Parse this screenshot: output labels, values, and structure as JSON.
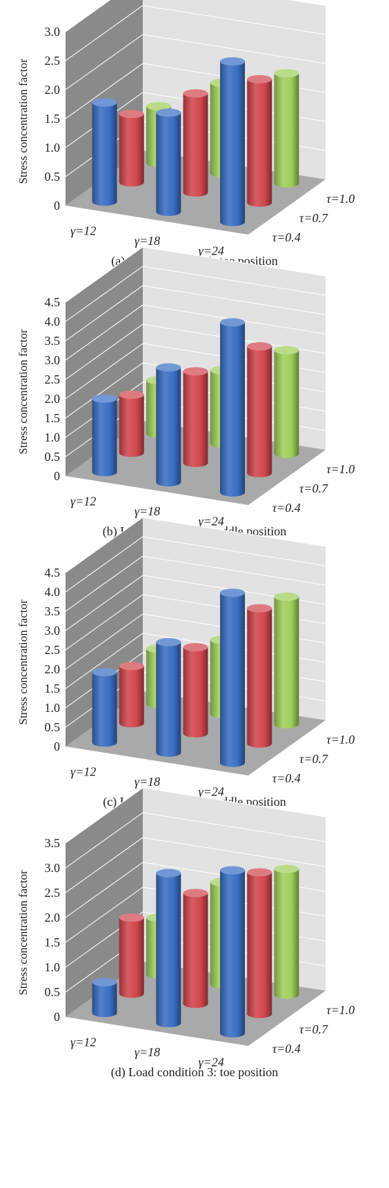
{
  "chart_data": [
    {
      "type": "bar",
      "title": "(a) Load condition 1: toe position",
      "ylabel": "Stress concentration factor",
      "ylim": [
        0,
        3.0
      ],
      "yticks": [
        "0",
        "0.5",
        "1.0",
        "1.5",
        "2.0",
        "2.5",
        "3.0"
      ],
      "categories": [
        "γ=12",
        "γ=18",
        "γ=24"
      ],
      "series": [
        {
          "name": "τ=0.4",
          "color": "#3a6fc4",
          "values": [
            1.71,
            1.71,
            2.77
          ]
        },
        {
          "name": "τ=0.7",
          "color": "#d1474e",
          "values": [
            1.18,
            1.71,
            2.13
          ]
        },
        {
          "name": "τ=1.0",
          "color": "#9fcf5a",
          "values": [
            0.98,
            1.56,
            1.9
          ]
        }
      ]
    },
    {
      "type": "bar",
      "title": "(b) Load condition 2: saddle position",
      "ylabel": "Stress concentration factor",
      "ylim": [
        0,
        4.5
      ],
      "yticks": [
        "0",
        "0.5",
        "1.0",
        "1.5",
        "2.0",
        "2.5",
        "3.0",
        "3.5",
        "4.0",
        "4.5"
      ],
      "categories": [
        "γ=12",
        "γ=18",
        "γ=24"
      ],
      "series": [
        {
          "name": "τ=0.4",
          "color": "#3a6fc4",
          "values": [
            1.9,
            2.97,
            4.4
          ]
        },
        {
          "name": "τ=0.7",
          "color": "#d1474e",
          "values": [
            1.5,
            2.37,
            3.28
          ]
        },
        {
          "name": "τ=1.0",
          "color": "#9fcf5a",
          "values": [
            1.38,
            1.9,
            2.68
          ]
        }
      ]
    },
    {
      "type": "bar",
      "title": "(c) Load condition 3: saddle position",
      "ylabel": "Stress concentration factor",
      "ylim": [
        0,
        4.5
      ],
      "yticks": [
        "0",
        "0.5",
        "1.0",
        "1.5",
        "2.0",
        "2.5",
        "3.0",
        "3.5",
        "4.0",
        "4.5"
      ],
      "categories": [
        "γ=12",
        "γ=18",
        "γ=24"
      ],
      "series": [
        {
          "name": "τ=0.4",
          "color": "#3a6fc4",
          "values": [
            1.82,
            2.86,
            4.4
          ]
        },
        {
          "name": "τ=0.7",
          "color": "#d1474e",
          "values": [
            1.48,
            2.23,
            3.5
          ]
        },
        {
          "name": "τ=1.0",
          "color": "#9fcf5a",
          "values": [
            1.43,
            1.92,
            3.3
          ]
        }
      ]
    },
    {
      "type": "bar",
      "title": "(d) Load condition 3: toe position",
      "ylabel": "Stress concentration factor",
      "ylim": [
        0,
        3.5
      ],
      "yticks": [
        "0",
        "0.5",
        "1.0",
        "1.5",
        "2.0",
        "2.5",
        "3.0",
        "3.5"
      ],
      "categories": [
        "γ=12",
        "γ=18",
        "γ=24"
      ],
      "series": [
        {
          "name": "τ=0.4",
          "color": "#3a6fc4",
          "values": [
            0.62,
            3.02,
            3.28
          ]
        },
        {
          "name": "τ=0.7",
          "color": "#d1474e",
          "values": [
            1.53,
            2.23,
            2.85
          ]
        },
        {
          "name": "τ=1.0",
          "color": "#9fcf5a",
          "values": [
            1.14,
            2.06,
            2.53
          ]
        }
      ]
    }
  ]
}
